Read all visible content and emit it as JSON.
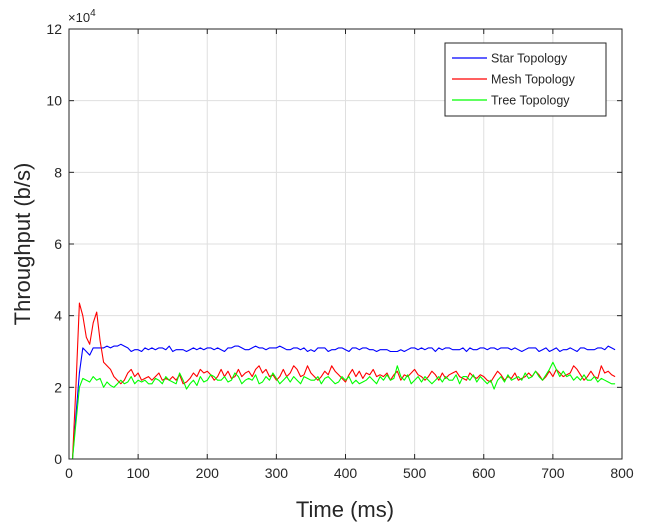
{
  "chart_data": {
    "type": "line",
    "title": "",
    "xlabel": "Time (ms)",
    "ylabel": "Throughput (b/s)",
    "y_exponent_label": "×10",
    "y_exponent_power": "4",
    "xlim": [
      0,
      800
    ],
    "ylim": [
      0,
      12
    ],
    "y_scale_factor": 10000,
    "x_ticks": [
      0,
      100,
      200,
      300,
      400,
      500,
      600,
      700,
      800
    ],
    "y_ticks": [
      0,
      2,
      4,
      6,
      8,
      10,
      12
    ],
    "grid": true,
    "legend_position": "top-right",
    "series": [
      {
        "name": "Star Topology",
        "color": "#0000ff",
        "x": [
          0,
          5,
          10,
          15,
          20,
          25,
          30,
          35,
          40,
          45,
          50,
          55,
          60,
          65,
          70,
          75,
          80,
          85,
          90,
          95,
          100,
          105,
          110,
          115,
          120,
          125,
          130,
          135,
          140,
          145,
          150,
          155,
          160,
          165,
          170,
          175,
          180,
          185,
          190,
          195,
          200,
          205,
          210,
          215,
          220,
          225,
          230,
          235,
          240,
          245,
          250,
          255,
          260,
          265,
          270,
          275,
          280,
          285,
          290,
          295,
          300,
          305,
          310,
          315,
          320,
          325,
          330,
          335,
          340,
          345,
          350,
          355,
          360,
          365,
          370,
          375,
          380,
          385,
          390,
          395,
          400,
          405,
          410,
          415,
          420,
          425,
          430,
          435,
          440,
          445,
          450,
          455,
          460,
          465,
          470,
          475,
          480,
          485,
          490,
          495,
          500,
          505,
          510,
          515,
          520,
          525,
          530,
          535,
          540,
          545,
          550,
          555,
          560,
          565,
          570,
          575,
          580,
          585,
          590,
          595,
          600,
          605,
          610,
          615,
          620,
          625,
          630,
          635,
          640,
          645,
          650,
          655,
          660,
          665,
          670,
          675,
          680,
          685,
          690,
          695,
          700,
          705,
          710,
          715,
          720,
          725,
          730,
          735,
          740,
          745,
          750,
          755,
          760,
          765,
          770,
          775,
          780,
          785,
          790
        ],
        "values": [
          0.0,
          0.0,
          1.2,
          2.4,
          3.1,
          3.0,
          2.9,
          3.1,
          3.1,
          3.1,
          3.1,
          3.15,
          3.1,
          3.15,
          3.15,
          3.2,
          3.15,
          3.1,
          3.0,
          3.05,
          3.05,
          3.0,
          3.1,
          3.05,
          3.1,
          3.05,
          3.1,
          3.1,
          3.05,
          3.15,
          3.0,
          3.05,
          3.05,
          3.05,
          3.0,
          3.05,
          3.1,
          3.05,
          3.1,
          3.05,
          3.1,
          3.1,
          3.05,
          3.1,
          3.05,
          3.0,
          3.1,
          3.1,
          3.15,
          3.15,
          3.1,
          3.05,
          3.05,
          3.1,
          3.15,
          3.1,
          3.1,
          3.05,
          3.1,
          3.1,
          3.1,
          3.15,
          3.1,
          3.05,
          3.05,
          3.1,
          3.1,
          3.05,
          3.1,
          3.0,
          3.05,
          3.0,
          3.1,
          3.1,
          3.1,
          3.0,
          3.05,
          3.05,
          3.1,
          3.1,
          3.05,
          3.0,
          3.1,
          3.1,
          3.05,
          3.1,
          3.1,
          3.05,
          3.05,
          3.0,
          3.05,
          3.05,
          3.05,
          3.0,
          3.0,
          3.0,
          3.05,
          3.0,
          3.05,
          3.1,
          3.1,
          3.05,
          3.1,
          3.05,
          3.1,
          3.1,
          3.0,
          3.1,
          3.05,
          3.1,
          3.1,
          3.05,
          3.05,
          3.05,
          3.1,
          3.0,
          3.1,
          3.05,
          3.05,
          3.1,
          3.1,
          3.05,
          3.1,
          3.1,
          3.05,
          3.1,
          3.1,
          3.1,
          3.05,
          3.1,
          3.05,
          3.0,
          3.05,
          3.1,
          3.1,
          3.1,
          3.0,
          3.05,
          3.1,
          3.0,
          3.05,
          3.1,
          3.0,
          3.05,
          3.05,
          3.1,
          3.05,
          3.0,
          3.1,
          3.1,
          3.05,
          3.05,
          3.05,
          3.1,
          3.1,
          3.05,
          3.15,
          3.1,
          3.05
        ]
      },
      {
        "name": "Mesh Topology",
        "color": "#ff0000",
        "x": [
          0,
          5,
          10,
          15,
          20,
          25,
          30,
          35,
          40,
          45,
          50,
          55,
          60,
          65,
          70,
          75,
          80,
          85,
          90,
          95,
          100,
          105,
          110,
          115,
          120,
          125,
          130,
          135,
          140,
          145,
          150,
          155,
          160,
          165,
          170,
          175,
          180,
          185,
          190,
          195,
          200,
          205,
          210,
          215,
          220,
          225,
          230,
          235,
          240,
          245,
          250,
          255,
          260,
          265,
          270,
          275,
          280,
          285,
          290,
          295,
          300,
          305,
          310,
          315,
          320,
          325,
          330,
          335,
          340,
          345,
          350,
          355,
          360,
          365,
          370,
          375,
          380,
          385,
          390,
          395,
          400,
          405,
          410,
          415,
          420,
          425,
          430,
          435,
          440,
          445,
          450,
          455,
          460,
          465,
          470,
          475,
          480,
          485,
          490,
          495,
          500,
          505,
          510,
          515,
          520,
          525,
          530,
          535,
          540,
          545,
          550,
          555,
          560,
          565,
          570,
          575,
          580,
          585,
          590,
          595,
          600,
          605,
          610,
          615,
          620,
          625,
          630,
          635,
          640,
          645,
          650,
          655,
          660,
          665,
          670,
          675,
          680,
          685,
          690,
          695,
          700,
          705,
          710,
          715,
          720,
          725,
          730,
          735,
          740,
          745,
          750,
          755,
          760,
          765,
          770,
          775,
          780,
          785,
          790
        ],
        "values": [
          0.0,
          0.0,
          2.0,
          4.35,
          4.0,
          3.4,
          3.2,
          3.8,
          4.1,
          3.3,
          2.7,
          2.6,
          2.5,
          2.3,
          2.2,
          2.1,
          2.2,
          2.4,
          2.5,
          2.3,
          2.4,
          2.2,
          2.25,
          2.3,
          2.2,
          2.3,
          2.4,
          2.2,
          2.25,
          2.2,
          2.3,
          2.2,
          2.35,
          2.1,
          2.15,
          2.25,
          2.4,
          2.3,
          2.5,
          2.4,
          2.45,
          2.35,
          2.2,
          2.3,
          2.5,
          2.3,
          2.45,
          2.25,
          2.3,
          2.5,
          2.3,
          2.4,
          2.45,
          2.3,
          2.5,
          2.6,
          2.4,
          2.5,
          2.3,
          2.35,
          2.2,
          2.3,
          2.5,
          2.3,
          2.4,
          2.6,
          2.5,
          2.3,
          2.35,
          2.6,
          2.4,
          2.3,
          2.2,
          2.3,
          2.45,
          2.35,
          2.6,
          2.45,
          2.35,
          2.25,
          2.15,
          2.35,
          2.5,
          2.3,
          2.45,
          2.25,
          2.4,
          2.35,
          2.5,
          2.3,
          2.35,
          2.3,
          2.4,
          2.2,
          2.35,
          2.45,
          2.2,
          2.35,
          2.3,
          2.4,
          2.5,
          2.35,
          2.3,
          2.2,
          2.3,
          2.45,
          2.35,
          2.2,
          2.4,
          2.25,
          2.35,
          2.4,
          2.45,
          2.3,
          2.25,
          2.2,
          2.4,
          2.3,
          2.25,
          2.35,
          2.3,
          2.2,
          2.15,
          2.3,
          2.45,
          2.35,
          2.2,
          2.3,
          2.25,
          2.4,
          2.2,
          2.25,
          2.3,
          2.4,
          2.3,
          2.45,
          2.35,
          2.2,
          2.3,
          2.45,
          2.3,
          2.5,
          2.4,
          2.3,
          2.35,
          2.4,
          2.6,
          2.5,
          2.35,
          2.2,
          2.3,
          2.45,
          2.3,
          2.25,
          2.6,
          2.4,
          2.45,
          2.35,
          2.3
        ]
      },
      {
        "name": "Tree Topology",
        "color": "#00ff00",
        "x": [
          0,
          5,
          10,
          15,
          20,
          25,
          30,
          35,
          40,
          45,
          50,
          55,
          60,
          65,
          70,
          75,
          80,
          85,
          90,
          95,
          100,
          105,
          110,
          115,
          120,
          125,
          130,
          135,
          140,
          145,
          150,
          155,
          160,
          165,
          170,
          175,
          180,
          185,
          190,
          195,
          200,
          205,
          210,
          215,
          220,
          225,
          230,
          235,
          240,
          245,
          250,
          255,
          260,
          265,
          270,
          275,
          280,
          285,
          290,
          295,
          300,
          305,
          310,
          315,
          320,
          325,
          330,
          335,
          340,
          345,
          350,
          355,
          360,
          365,
          370,
          375,
          380,
          385,
          390,
          395,
          400,
          405,
          410,
          415,
          420,
          425,
          430,
          435,
          440,
          445,
          450,
          455,
          460,
          465,
          470,
          475,
          480,
          485,
          490,
          495,
          500,
          505,
          510,
          515,
          520,
          525,
          530,
          535,
          540,
          545,
          550,
          555,
          560,
          565,
          570,
          575,
          580,
          585,
          590,
          595,
          600,
          605,
          610,
          615,
          620,
          625,
          630,
          635,
          640,
          645,
          650,
          655,
          660,
          665,
          670,
          675,
          680,
          685,
          690,
          695,
          700,
          705,
          710,
          715,
          720,
          725,
          730,
          735,
          740,
          745,
          750,
          755,
          760,
          765,
          770,
          775,
          780,
          785,
          790
        ],
        "values": [
          0.0,
          0.0,
          1.0,
          2.0,
          2.25,
          2.2,
          2.15,
          2.3,
          2.2,
          2.25,
          2.0,
          2.15,
          2.05,
          2.0,
          2.1,
          2.2,
          2.1,
          2.15,
          2.3,
          2.1,
          2.2,
          2.15,
          2.2,
          2.1,
          2.1,
          2.25,
          2.2,
          2.1,
          2.3,
          2.2,
          2.15,
          2.1,
          2.4,
          2.2,
          1.95,
          2.1,
          2.2,
          2.05,
          2.3,
          2.15,
          2.2,
          2.35,
          2.3,
          2.2,
          2.2,
          2.3,
          2.15,
          2.2,
          2.4,
          2.3,
          2.1,
          2.2,
          2.25,
          2.2,
          2.35,
          2.1,
          2.15,
          2.3,
          2.2,
          2.4,
          2.25,
          2.1,
          2.2,
          2.3,
          2.15,
          2.3,
          2.2,
          2.1,
          2.3,
          2.25,
          2.2,
          2.2,
          2.3,
          2.1,
          2.25,
          2.3,
          2.2,
          2.1,
          2.15,
          2.3,
          2.2,
          2.3,
          2.1,
          2.2,
          2.1,
          2.15,
          2.2,
          2.3,
          2.2,
          2.1,
          2.3,
          2.2,
          2.35,
          2.2,
          2.25,
          2.6,
          2.3,
          2.2,
          2.35,
          2.1,
          2.2,
          2.3,
          2.15,
          2.3,
          2.2,
          2.1,
          2.2,
          2.3,
          2.15,
          2.3,
          2.2,
          2.2,
          2.35,
          2.1,
          2.3,
          2.3,
          2.2,
          2.35,
          2.15,
          2.3,
          2.2,
          2.1,
          2.2,
          1.95,
          2.2,
          2.3,
          2.15,
          2.35,
          2.2,
          2.25,
          2.3,
          2.2,
          2.4,
          2.25,
          2.3,
          2.45,
          2.3,
          2.2,
          2.35,
          2.5,
          2.7,
          2.5,
          2.3,
          2.45,
          2.3,
          2.35,
          2.2,
          2.3,
          2.2,
          2.35,
          2.2,
          2.2,
          2.3,
          2.15,
          2.25,
          2.2,
          2.15,
          2.1,
          2.1
        ]
      }
    ]
  }
}
